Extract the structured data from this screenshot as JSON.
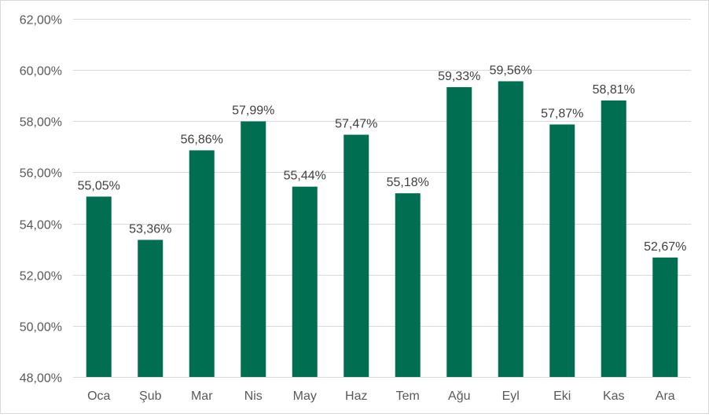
{
  "chart_data": {
    "type": "bar",
    "title": "",
    "xlabel": "",
    "ylabel": "",
    "categories": [
      "Oca",
      "Şub",
      "Mar",
      "Nis",
      "May",
      "Haz",
      "Tem",
      "Ağu",
      "Eyl",
      "Eki",
      "Kas",
      "Ara"
    ],
    "values": [
      55.05,
      53.36,
      56.86,
      57.99,
      55.44,
      57.47,
      55.18,
      59.33,
      59.56,
      57.87,
      58.81,
      52.67
    ],
    "data_labels": [
      "55,05%",
      "53,36%",
      "56,86%",
      "57,99%",
      "55,44%",
      "57,47%",
      "55,18%",
      "59,33%",
      "59,56%",
      "57,87%",
      "58,81%",
      "52,67%"
    ],
    "ylim": [
      48,
      62
    ],
    "y_ticks": [
      48,
      50,
      52,
      54,
      56,
      58,
      60,
      62
    ],
    "y_tick_labels": [
      "48,00%",
      "50,00%",
      "52,00%",
      "54,00%",
      "56,00%",
      "58,00%",
      "60,00%",
      "62,00%"
    ],
    "grid": true,
    "legend": "none",
    "bar_color": "#006e51",
    "grid_color": "#d9d9d9"
  }
}
